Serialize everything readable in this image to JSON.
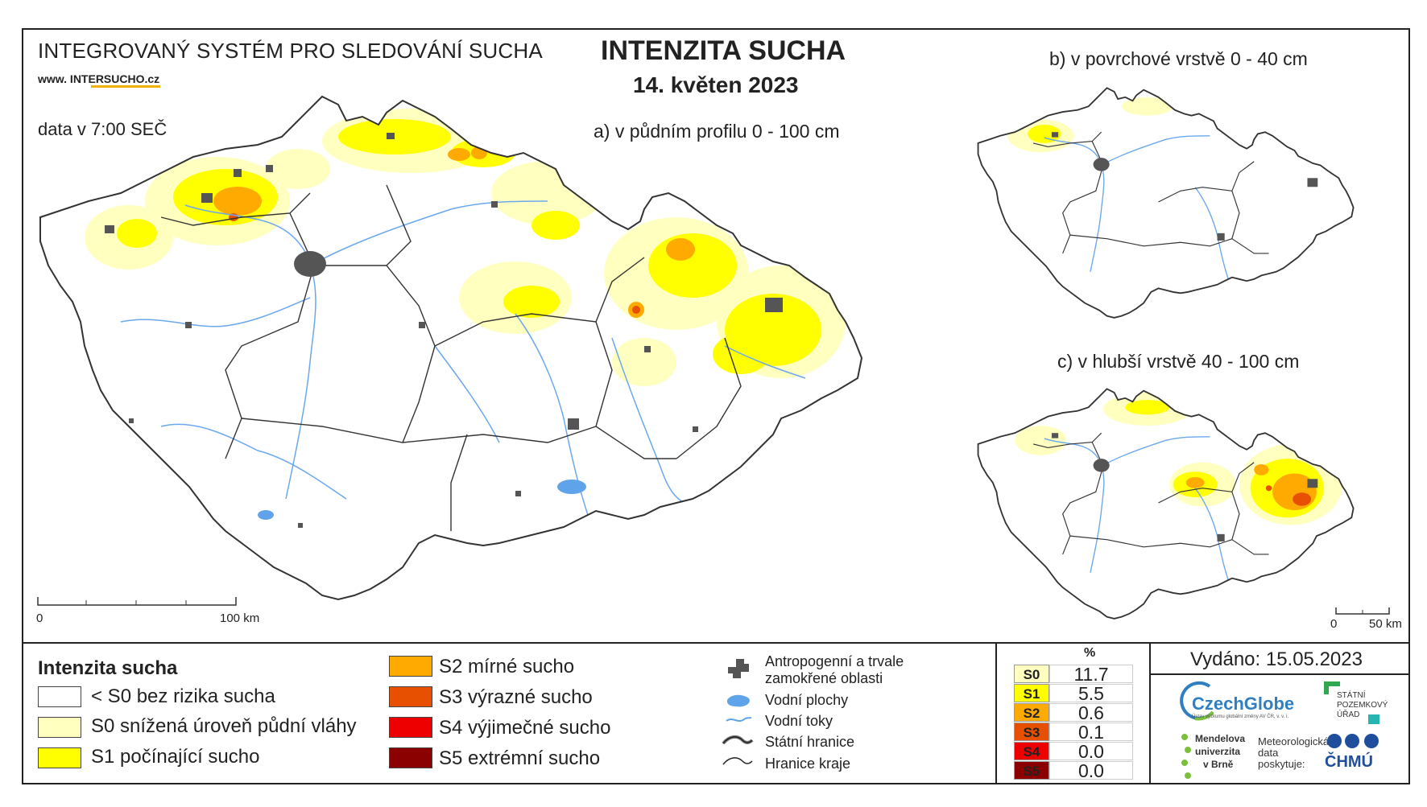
{
  "header": {
    "system_title": "INTEGROVANÝ SYSTÉM PRO SLEDOVÁNÍ SUCHA",
    "website": "www. INTERSUCHO.cz",
    "data_time": "data v 7:00 SEČ",
    "main_title": "INTENZITA SUCHA",
    "date": "14. květen 2023"
  },
  "maps": {
    "a_label": "a) v půdním profilu 0 - 100 cm",
    "b_label": "b) v povrchové vrstvě 0 - 40 cm",
    "c_label": "c) v hlubší vrstvě 40 - 100 cm",
    "scale_main": {
      "start": "0",
      "end": "100 km"
    },
    "scale_small": {
      "start": "0",
      "end": "50 km"
    }
  },
  "legend": {
    "title": "Intenzita sucha",
    "classes": [
      {
        "label": "< S0 bez rizika sucha",
        "color": "#ffffff"
      },
      {
        "label": "S0 snížená úroveň půdní vláhy",
        "color": "#ffffc0"
      },
      {
        "label": "S1 počínající sucho",
        "color": "#ffff00"
      },
      {
        "label": "S2 mírné sucho",
        "color": "#ffaa00"
      },
      {
        "label": "S3 výrazné sucho",
        "color": "#e65000"
      },
      {
        "label": "S4 výjimečné sucho",
        "color": "#ee0000"
      },
      {
        "label": "S5 extrémní sucho",
        "color": "#8b0000"
      }
    ],
    "symbols": {
      "anthropogenic": "Antropogenní a trvale zamokřené oblasti",
      "water_areas": "Vodní plochy",
      "water_streams": "Vodní toky",
      "state_border": "Státní hranice",
      "region_border": "Hranice kraje"
    }
  },
  "percent_table": {
    "header": "%",
    "rows": [
      {
        "code": "S0",
        "value": "11.7",
        "color": "#ffffc0"
      },
      {
        "code": "S1",
        "value": "5.5",
        "color": "#ffff00"
      },
      {
        "code": "S2",
        "value": "0.6",
        "color": "#ffaa00"
      },
      {
        "code": "S3",
        "value": "0.1",
        "color": "#e65000"
      },
      {
        "code": "S4",
        "value": "0.0",
        "color": "#ee0000"
      },
      {
        "code": "S5",
        "value": "0.0",
        "color": "#8b0000"
      }
    ]
  },
  "footer": {
    "issued": "Vydáno: 15.05.2023",
    "czechglobe": "CzechGlobe",
    "czechglobe_sub": "Ústav výzkumu globální změny AV ČR, v. v. i.",
    "spu": [
      "STÁTNÍ",
      "POZEMKOVÝ",
      "ÚŘAD"
    ],
    "mendel": [
      "Mendelova",
      "univerzita",
      "v Brně"
    ],
    "meteo": [
      "Meteorologická",
      "data",
      "poskytuje:"
    ],
    "chmu": "ČHMÚ"
  },
  "colors": {
    "dry_s0": "#ffffc0",
    "dry_s1": "#ffff00",
    "dry_s2": "#ffaa00",
    "dry_s3": "#e65000",
    "urban": "#555555",
    "water": "#5fa3ea"
  }
}
